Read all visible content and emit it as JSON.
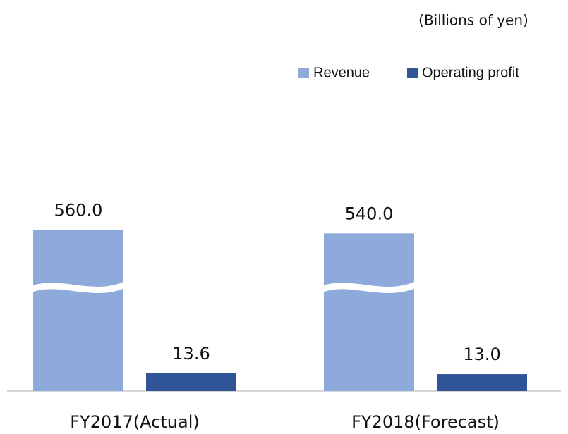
{
  "chart_data": {
    "type": "bar",
    "subtitle": "(Billions of yen)",
    "categories": [
      "FY2017(Actual)",
      "FY2018(Forecast)"
    ],
    "series": [
      {
        "name": "Revenue",
        "color": "#8eaadb",
        "values": [
          560,
          540
        ],
        "value_labels": [
          "560.0",
          "540.0"
        ]
      },
      {
        "name": "Operating profit",
        "color": "#2f5597",
        "values": [
          13.6,
          13.0
        ],
        "value_labels": [
          "13.6",
          "13.0"
        ]
      }
    ],
    "axis_break": true,
    "legend": "top-right"
  }
}
